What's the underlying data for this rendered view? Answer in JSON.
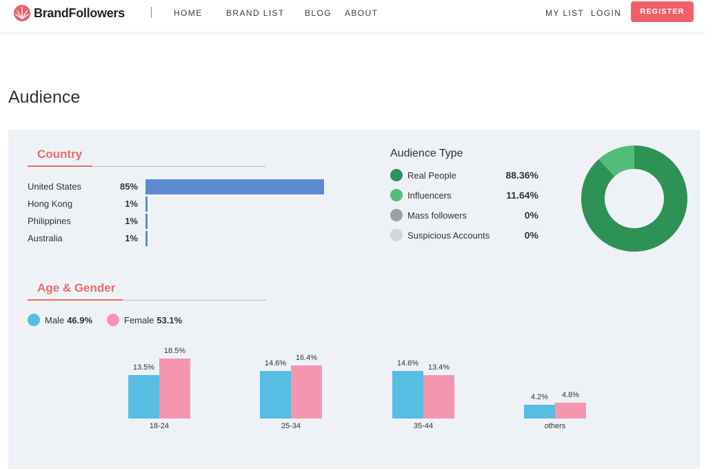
{
  "nav": {
    "brand": "BrandFollowers",
    "links": [
      "HOME",
      "BRAND LIST",
      "BLOG",
      "ABOUT"
    ],
    "my_list": "MY LIST",
    "login": "LOGIN",
    "register": "REGISTER"
  },
  "page_title": "Audience",
  "country": {
    "heading": "Country",
    "rows": [
      {
        "name": "United States",
        "pct_label": "85%",
        "value": 85
      },
      {
        "name": "Hong Kong",
        "pct_label": "1%",
        "value": 1
      },
      {
        "name": "Philippines",
        "pct_label": "1%",
        "value": 1
      },
      {
        "name": "Australia",
        "pct_label": "1%",
        "value": 1
      }
    ]
  },
  "audience_type": {
    "title": "Audience Type",
    "rows": [
      {
        "label": "Real People",
        "value_label": "88.36%",
        "value": 88.36,
        "color": "#2e9155"
      },
      {
        "label": "Influencers",
        "value_label": "11.64%",
        "value": 11.64,
        "color": "#52bd7a"
      },
      {
        "label": "Mass followers",
        "value_label": "0%",
        "value": 0,
        "color": "#9aa1a8"
      },
      {
        "label": "Suspicious Accounts",
        "value_label": "0%",
        "value": 0,
        "color": "#d1d6dc"
      }
    ]
  },
  "age_gender": {
    "heading": "Age & Gender",
    "male_label": "Male",
    "male_value": "46.9%",
    "female_label": "Female",
    "female_value": "53.1%",
    "male_color": "#56bde3",
    "female_color": "#f596b0"
  },
  "chart_data": [
    {
      "type": "pie",
      "title": "Audience Type",
      "categories": [
        "Real People",
        "Influencers",
        "Mass followers",
        "Suspicious Accounts"
      ],
      "values": [
        88.36,
        11.64,
        0,
        0
      ]
    },
    {
      "type": "bar",
      "title": "Age & Gender",
      "categories": [
        "18-24",
        "25-34",
        "35-44",
        "others"
      ],
      "series": [
        {
          "name": "Male",
          "values": [
            13.5,
            14.6,
            14.6,
            4.2
          ],
          "labels": [
            "13.5%",
            "14.6%",
            "14.6%",
            "4.2%"
          ]
        },
        {
          "name": "Female",
          "values": [
            18.5,
            16.4,
            13.4,
            4.8
          ],
          "labels": [
            "18.5%",
            "16.4%",
            "13.4%",
            "4.8%"
          ]
        }
      ]
    },
    {
      "type": "bar",
      "title": "Country",
      "categories": [
        "United States",
        "Hong Kong",
        "Philippines",
        "Australia"
      ],
      "values": [
        85,
        1,
        1,
        1
      ]
    }
  ]
}
